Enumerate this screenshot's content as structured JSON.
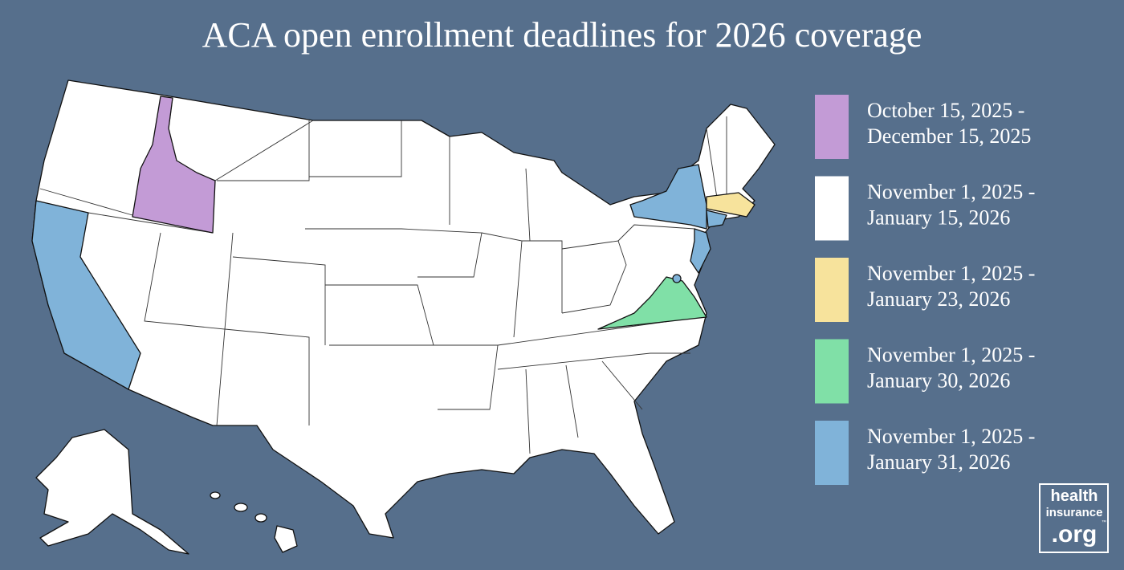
{
  "title": "ACA open enrollment deadlines for 2026 coverage",
  "legend": [
    {
      "color": "#c39bd6",
      "line1": "October 15, 2025 -",
      "line2": "December 15, 2025"
    },
    {
      "color": "#ffffff",
      "line1": "November 1, 2025 -",
      "line2": "January 15, 2026"
    },
    {
      "color": "#f7e39c",
      "line1": "November 1, 2025 -",
      "line2": "January 23, 2026"
    },
    {
      "color": "#80e0a7",
      "line1": "November 1, 2025 -",
      "line2": "January 30, 2026"
    },
    {
      "color": "#80b3d9",
      "line1": "November 1, 2025 -",
      "line2": "January 31, 2026"
    }
  ],
  "logo": {
    "line1": "health",
    "line2": "insurance",
    "line3": ".org",
    "mark": "™"
  }
}
